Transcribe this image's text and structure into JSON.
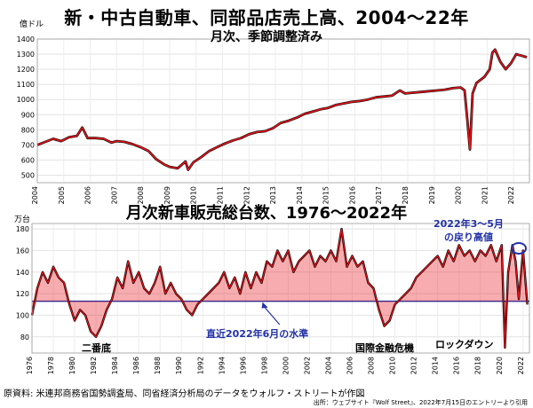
{
  "titles": {
    "main": "新・中古自動車、同部品店売上高、2004〜22年",
    "main_sub": "月次、季節調整済み",
    "second": "月次新車販売総台数、1976〜2022年"
  },
  "annotations": {
    "trough_label": "二番底",
    "gfc_label": "国際金融危機",
    "lockdown_label": "ロックダウン",
    "recovery_label_1": "2022年3〜5月",
    "recovery_label_2": "の戻り高値",
    "current_level_label": "直近2022年6月の水準"
  },
  "source": {
    "line1": "原資料: 米連邦商務省国勢調査局、同省経済分析局のデータをウォルフ・ストリートが作図",
    "line2": "出所：ウェブサイト『Wolf Street』、2022年7月15日のエントリーより引用"
  },
  "colors": {
    "series": "#e8141b",
    "border": "#000000",
    "reference_line": "#2231a8"
  },
  "chart_data": [
    {
      "type": "line",
      "title": "新・中古自動車、同部品店売上高、2004〜22年",
      "subtitle": "月次、季節調整済み",
      "ylabel": "億ドル",
      "ylim": [
        450,
        1400
      ],
      "yticks": [
        500,
        600,
        700,
        800,
        900,
        1000,
        1100,
        1200,
        1300,
        1400
      ],
      "xlim": [
        2004,
        2022.6
      ],
      "xtick_labels": [
        "2004",
        "2005",
        "2006",
        "2007",
        "2008",
        "2009",
        "2010",
        "2011",
        "2012",
        "2013",
        "2014",
        "2015",
        "2016",
        "2017",
        "2018",
        "2019",
        "2020",
        "2021",
        "2022"
      ],
      "grid": true,
      "series": [
        {
          "x": [
            2004.0,
            2004.3,
            2004.6,
            2004.9,
            2005.2,
            2005.5,
            2005.7,
            2005.9,
            2006.2,
            2006.5,
            2006.8,
            2007.0,
            2007.3,
            2007.6,
            2007.9,
            2008.2,
            2008.5,
            2008.8,
            2009.0,
            2009.3,
            2009.6,
            2009.7,
            2009.9,
            2010.2,
            2010.5,
            2010.8,
            2011.1,
            2011.4,
            2011.7,
            2012.0,
            2012.3,
            2012.6,
            2012.9,
            2013.2,
            2013.5,
            2013.8,
            2014.1,
            2014.4,
            2014.7,
            2015.0,
            2015.3,
            2015.6,
            2015.9,
            2016.2,
            2016.5,
            2016.8,
            2017.1,
            2017.4,
            2017.7,
            2017.9,
            2018.2,
            2018.5,
            2018.8,
            2019.1,
            2019.4,
            2019.7,
            2020.0,
            2020.15,
            2020.25,
            2020.35,
            2020.45,
            2020.6,
            2020.9,
            2021.1,
            2021.2,
            2021.3,
            2021.5,
            2021.7,
            2021.9,
            2022.1,
            2022.3,
            2022.5
          ],
          "y": [
            700,
            720,
            740,
            725,
            750,
            760,
            815,
            745,
            745,
            740,
            715,
            725,
            720,
            705,
            685,
            660,
            605,
            570,
            555,
            545,
            590,
            535,
            585,
            620,
            660,
            685,
            710,
            730,
            745,
            770,
            785,
            790,
            810,
            845,
            860,
            880,
            905,
            920,
            935,
            945,
            965,
            975,
            985,
            990,
            1000,
            1015,
            1020,
            1025,
            1060,
            1040,
            1045,
            1050,
            1055,
            1060,
            1065,
            1075,
            1080,
            1060,
            870,
            670,
            1040,
            1110,
            1150,
            1200,
            1310,
            1330,
            1250,
            1200,
            1240,
            1300,
            1290,
            1280
          ]
        }
      ]
    },
    {
      "type": "line",
      "title": "月次新車販売総台数、1976〜2022年",
      "ylabel": "万台",
      "ylim": [
        65,
        185
      ],
      "yticks": [
        80,
        100,
        120,
        140,
        160,
        180
      ],
      "xlim": [
        1976,
        2022.6
      ],
      "xtick_labels": [
        "1976",
        "1978",
        "1980",
        "1982",
        "1984",
        "1986",
        "1988",
        "1990",
        "1992",
        "1994",
        "1996",
        "1998",
        "2000",
        "2002",
        "2004",
        "2006",
        "2008",
        "2010",
        "2012",
        "2014",
        "2016",
        "2018",
        "2020",
        "2022"
      ],
      "reference_value": 113,
      "grid": true,
      "series": [
        {
          "x": [
            1976,
            1976.5,
            1977,
            1977.5,
            1978,
            1978.5,
            1979,
            1979.5,
            1980,
            1980.5,
            1981,
            1981.5,
            1982,
            1982.5,
            1983,
            1983.5,
            1984,
            1984.5,
            1985,
            1985.5,
            1986,
            1986.5,
            1987,
            1987.5,
            1988,
            1988.5,
            1989,
            1989.5,
            1990,
            1990.5,
            1991,
            1991.5,
            1992,
            1992.5,
            1993,
            1993.5,
            1994,
            1994.5,
            1995,
            1995.5,
            1996,
            1996.5,
            1997,
            1997.5,
            1998,
            1998.5,
            1999,
            1999.5,
            2000,
            2000.5,
            2001,
            2001.5,
            2002,
            2002.5,
            2003,
            2003.5,
            2004,
            2004.5,
            2005,
            2005.5,
            2006,
            2006.5,
            2007,
            2007.5,
            2008,
            2008.5,
            2009,
            2009.5,
            2010,
            2010.5,
            2011,
            2011.5,
            2012,
            2012.5,
            2013,
            2013.5,
            2014,
            2014.5,
            2015,
            2015.5,
            2016,
            2016.5,
            2017,
            2017.5,
            2018,
            2018.5,
            2019,
            2019.5,
            2020,
            2020.3,
            2020.6,
            2021,
            2021.3,
            2021.6,
            2022,
            2022.4
          ],
          "y": [
            100,
            125,
            140,
            130,
            145,
            135,
            130,
            110,
            95,
            105,
            100,
            85,
            80,
            90,
            105,
            115,
            135,
            125,
            150,
            130,
            140,
            125,
            120,
            130,
            145,
            120,
            130,
            120,
            115,
            105,
            100,
            110,
            115,
            120,
            125,
            130,
            140,
            125,
            135,
            120,
            140,
            125,
            140,
            130,
            150,
            145,
            160,
            150,
            160,
            140,
            150,
            155,
            160,
            145,
            155,
            150,
            160,
            150,
            180,
            145,
            155,
            145,
            150,
            130,
            125,
            105,
            90,
            95,
            110,
            115,
            120,
            125,
            135,
            140,
            145,
            150,
            155,
            145,
            160,
            150,
            165,
            155,
            160,
            150,
            160,
            155,
            165,
            150,
            165,
            70,
            140,
            165,
            150,
            115,
            160,
            110
          ]
        }
      ]
    }
  ]
}
